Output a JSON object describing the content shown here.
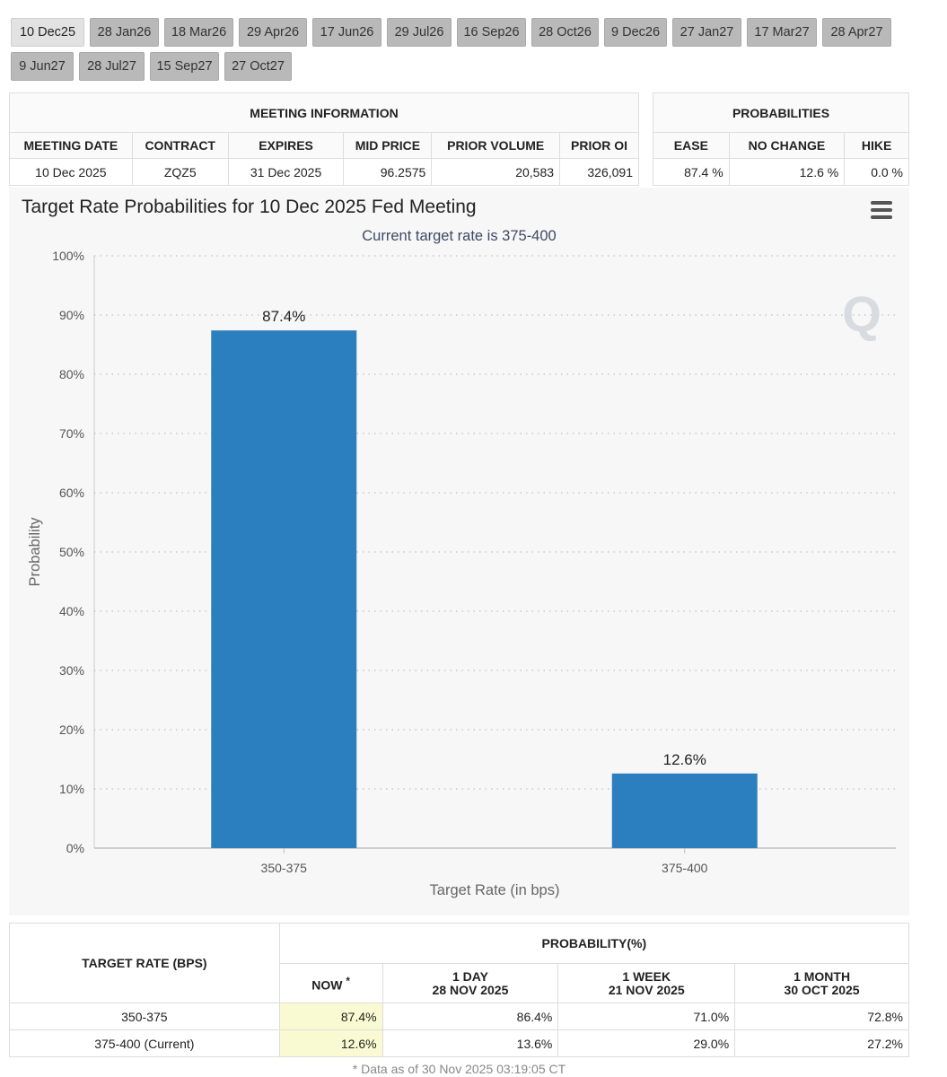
{
  "tabs": [
    [
      "10 Dec25",
      "28 Jan26",
      "18 Mar26",
      "29 Apr26",
      "17 Jun26",
      "29 Jul26",
      "16 Sep26",
      "28 Oct26",
      "9 Dec26",
      "27 Jan27",
      "17 Mar27",
      "28 Apr27"
    ],
    [
      "9 Jun27",
      "28 Jul27",
      "15 Sep27",
      "27 Oct27"
    ]
  ],
  "meeting_info": {
    "title": "MEETING INFORMATION",
    "headers": [
      "MEETING DATE",
      "CONTRACT",
      "EXPIRES",
      "MID PRICE",
      "PRIOR VOLUME",
      "PRIOR OI"
    ],
    "values": [
      "10 Dec 2025",
      "ZQZ5",
      "31 Dec 2025",
      "96.2575",
      "20,583",
      "326,091"
    ]
  },
  "probabilities": {
    "title": "PROBABILITIES",
    "headers": [
      "EASE",
      "NO CHANGE",
      "HIKE"
    ],
    "values": [
      "87.4 %",
      "12.6 %",
      "0.0 %"
    ]
  },
  "chart_data": {
    "type": "bar",
    "title": "Target Rate Probabilities for 10 Dec 2025 Fed Meeting",
    "subtitle": "Current target rate is 375-400",
    "xlabel": "Target Rate (in bps)",
    "ylabel": "Probability",
    "categories": [
      "350-375",
      "375-400"
    ],
    "values": [
      87.4,
      12.6
    ],
    "data_labels": [
      "87.4%",
      "12.6%"
    ],
    "ylim": [
      0,
      100
    ],
    "yticks": [
      "0%",
      "10%",
      "20%",
      "30%",
      "40%",
      "50%",
      "60%",
      "70%",
      "80%",
      "90%",
      "100%"
    ],
    "grid": true,
    "bar_color": "#2b7fbf",
    "watermark": "Q"
  },
  "history": {
    "rate_header": "TARGET RATE (BPS)",
    "prob_header": "PROBABILITY(%)",
    "columns": [
      {
        "line1": "NOW",
        "line2": ""
      },
      {
        "line1": "1 DAY",
        "line2": "28 NOV 2025"
      },
      {
        "line1": "1 WEEK",
        "line2": "21 NOV 2025"
      },
      {
        "line1": "1 MONTH",
        "line2": "30 OCT 2025"
      }
    ],
    "now_marker": "*",
    "rows": [
      {
        "rate": "350-375",
        "values": [
          "87.4%",
          "86.4%",
          "71.0%",
          "72.8%"
        ]
      },
      {
        "rate": "375-400 (Current)",
        "values": [
          "12.6%",
          "13.6%",
          "29.0%",
          "27.2%"
        ]
      }
    ],
    "footnote": "* Data as of 30 Nov 2025 03:19:05 CT"
  }
}
